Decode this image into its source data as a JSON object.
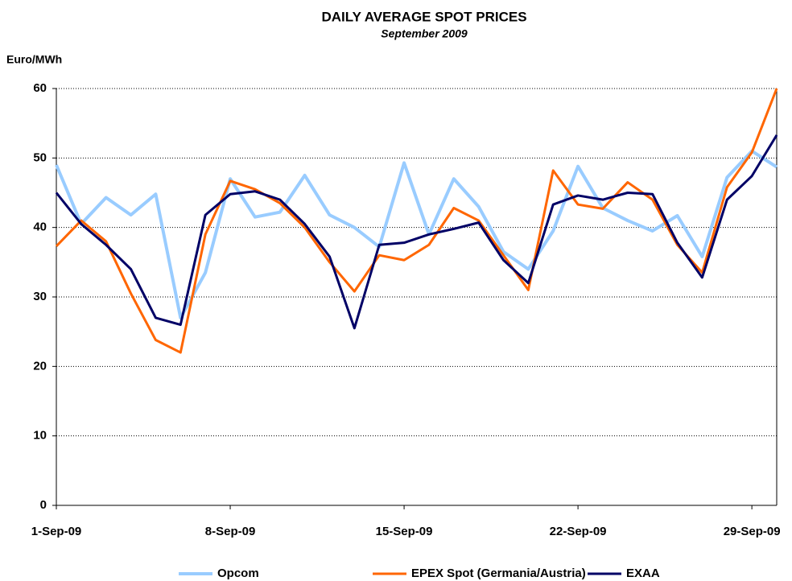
{
  "chart_data": {
    "type": "line",
    "title": "DAILY AVERAGE SPOT PRICES",
    "subtitle": "September 2009",
    "y_label": "Euro/MWh",
    "categories": [
      "1-Sep-09",
      null,
      null,
      null,
      null,
      null,
      null,
      "8-Sep-09",
      null,
      null,
      null,
      null,
      null,
      null,
      "15-Sep-09",
      null,
      null,
      null,
      null,
      null,
      null,
      "22-Sep-09",
      null,
      null,
      null,
      null,
      null,
      null,
      "29-Sep-09",
      null
    ],
    "series": [
      {
        "name": "Opcom",
        "color": "#99ccff",
        "values": [
          49,
          40.5,
          44.3,
          41.8,
          44.8,
          27,
          33.5,
          47,
          41.5,
          42.2,
          47.5,
          41.8,
          40,
          37.2,
          49.3,
          39,
          47,
          43,
          36.5,
          34,
          39.5,
          48.8,
          42.8,
          41,
          39.5,
          41.7,
          35.8,
          47.2,
          51,
          48.7
        ]
      },
      {
        "name": "EPEX Spot (Germania/Austria)",
        "color": "#ff6600",
        "values": [
          37.3,
          41,
          38,
          30.5,
          23.8,
          22,
          39,
          46.7,
          45.5,
          43.5,
          40,
          35,
          30.8,
          36,
          35.3,
          37.5,
          42.8,
          41,
          36,
          31,
          48.2,
          43.3,
          42.7,
          46.5,
          44,
          37.5,
          33.5,
          45.8,
          50.8,
          60
        ]
      },
      {
        "name": "EXAA",
        "color": "#000066",
        "values": [
          45,
          40.5,
          37.5,
          34,
          27,
          26,
          41.8,
          44.8,
          45.2,
          44,
          40.5,
          35.8,
          25.5,
          37.5,
          37.8,
          39,
          39.8,
          40.7,
          35.3,
          32,
          43.3,
          44.6,
          44,
          45,
          44.8,
          37.8,
          32.8,
          44,
          47.4,
          53.3
        ]
      }
    ],
    "ylim": [
      0,
      60
    ],
    "yticks": [
      0,
      10,
      20,
      30,
      40,
      50,
      60
    ],
    "grid": true,
    "legend": "bottom"
  }
}
